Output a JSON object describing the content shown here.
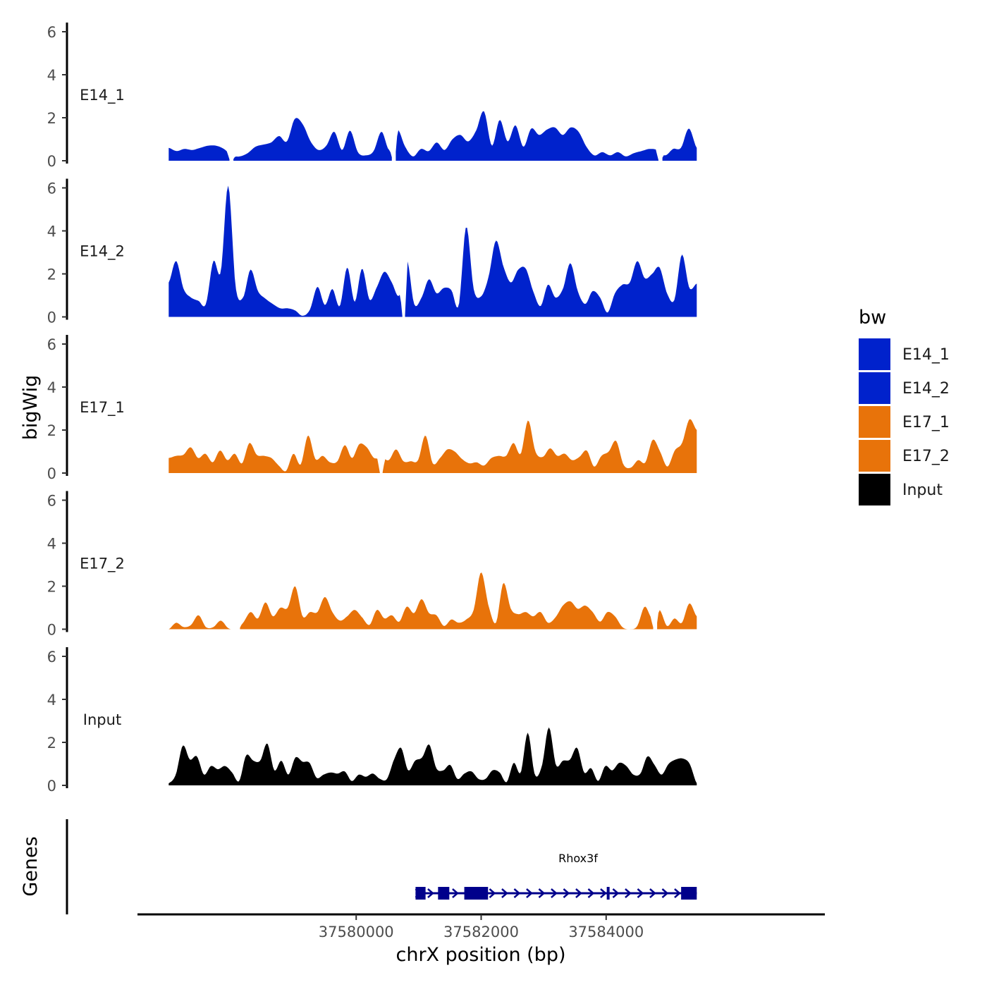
{
  "chart_data": {
    "type": "area",
    "chromosome": "chrX",
    "xlabel": "chrX position (bp)",
    "ylabel": "bigWig",
    "genes_label": "Genes",
    "xlim": [
      37576500,
      37587500
    ],
    "x_ticks": [
      37580000,
      37582000,
      37584000
    ],
    "x_tick_labels": [
      "37580000",
      "37582000",
      "37584000"
    ],
    "ylim": [
      0,
      6.3
    ],
    "y_ticks": [
      0,
      2,
      4,
      6
    ],
    "y_tick_labels": [
      "0",
      "2",
      "4",
      "6"
    ],
    "region": [
      37577000,
      37585450
    ],
    "legend": {
      "title": "bw",
      "entries": [
        {
          "label": "E14_1",
          "color": "#0022CC"
        },
        {
          "label": "E14_2",
          "color": "#0022CC"
        },
        {
          "label": "E17_1",
          "color": "#E8730A"
        },
        {
          "label": "E17_2",
          "color": "#E8730A"
        },
        {
          "label": "Input",
          "color": "#000000"
        }
      ]
    },
    "series": [
      {
        "name": "E14_1",
        "label": "E14_1",
        "color": "#0022CC",
        "profile": [
          0.6,
          0.45,
          0.55,
          0.5,
          0.6,
          0.7,
          0.7,
          0.55,
          0.25,
          0.2,
          0.35,
          0.65,
          0.75,
          0.85,
          1.15,
          0.9,
          1.95,
          1.7,
          0.9,
          0.5,
          0.7,
          1.35,
          0.5,
          1.4,
          0.4,
          0.25,
          0.45,
          1.35,
          0.5,
          1.45,
          0.65,
          0.2,
          0.55,
          0.45,
          0.85,
          0.5,
          1.0,
          1.2,
          0.9,
          1.4,
          2.3,
          0.7,
          1.9,
          0.9,
          1.65,
          0.65,
          1.5,
          1.2,
          1.45,
          1.55,
          1.2,
          1.55,
          1.35,
          0.65,
          0.25,
          0.4,
          0.25,
          0.4,
          0.2,
          0.35,
          0.45,
          0.55,
          0.5,
          0.25,
          0.55,
          0.6,
          1.5,
          0.6
        ],
        "gaps": [
          [
            37577980,
            37578020
          ],
          [
            37580580,
            37580620
          ],
          [
            37584840,
            37584880
          ]
        ]
      },
      {
        "name": "E14_2",
        "label": "E14_2",
        "color": "#0022CC",
        "profile": [
          1.6,
          2.6,
          1.3,
          0.9,
          0.75,
          0.6,
          2.6,
          2.1,
          6.1,
          1.4,
          0.9,
          2.2,
          1.2,
          0.85,
          0.6,
          0.4,
          0.4,
          0.3,
          0.05,
          0.35,
          1.4,
          0.55,
          1.3,
          0.5,
          2.3,
          0.7,
          2.25,
          0.8,
          1.4,
          2.1,
          1.6,
          1.0,
          2.7,
          0.6,
          0.9,
          1.75,
          1.1,
          1.35,
          1.25,
          0.55,
          4.2,
          1.3,
          0.95,
          1.85,
          3.55,
          2.35,
          1.6,
          2.2,
          2.25,
          1.2,
          0.5,
          1.5,
          0.9,
          1.3,
          2.5,
          1.2,
          0.6,
          1.2,
          0.9,
          0.2,
          1.1,
          1.5,
          1.6,
          2.6,
          1.8,
          2.0,
          2.3,
          1.1,
          0.8,
          2.9,
          1.35,
          1.55
        ],
        "gaps": [
          [
            37580740,
            37580780
          ]
        ]
      },
      {
        "name": "E17_1",
        "label": "E17_1",
        "color": "#E8730A",
        "profile": [
          0.7,
          0.8,
          0.85,
          1.2,
          0.7,
          0.9,
          0.5,
          1.05,
          0.6,
          0.9,
          0.45,
          1.4,
          0.85,
          0.8,
          0.7,
          0.35,
          0.1,
          0.9,
          0.4,
          1.75,
          0.65,
          0.8,
          0.5,
          0.55,
          1.3,
          0.7,
          1.35,
          1.2,
          0.7,
          0.75,
          0.6,
          1.1,
          0.55,
          0.55,
          0.6,
          1.75,
          0.45,
          0.7,
          1.1,
          1.0,
          0.65,
          0.45,
          0.5,
          0.35,
          0.7,
          0.8,
          0.8,
          1.4,
          0.9,
          2.45,
          1.0,
          0.75,
          1.15,
          0.8,
          0.9,
          0.6,
          0.75,
          1.05,
          0.3,
          0.8,
          1.0,
          1.5,
          0.4,
          0.25,
          0.6,
          0.5,
          1.55,
          1.0,
          0.3,
          1.05,
          1.4,
          2.5,
          2.0
        ],
        "gaps": [
          [
            37580380,
            37580420
          ]
        ]
      },
      {
        "name": "E17_2",
        "label": "E17_2",
        "color": "#E8730A",
        "profile": [
          0.0,
          0.3,
          0.1,
          0.2,
          0.65,
          0.1,
          0.1,
          0.4,
          0.05,
          0.0,
          0.3,
          0.8,
          0.5,
          1.25,
          0.6,
          1.0,
          1.0,
          2.0,
          0.6,
          0.8,
          0.8,
          1.5,
          0.8,
          0.4,
          0.6,
          0.9,
          0.55,
          0.2,
          0.9,
          0.5,
          0.65,
          0.35,
          1.05,
          0.75,
          1.4,
          0.75,
          0.65,
          0.15,
          0.45,
          0.3,
          0.45,
          0.9,
          2.65,
          1.1,
          0.3,
          2.15,
          0.95,
          0.7,
          0.8,
          0.6,
          0.8,
          0.3,
          0.55,
          1.1,
          1.3,
          0.95,
          1.1,
          0.8,
          0.35,
          0.8,
          0.6,
          0.1,
          0.0,
          0.15,
          1.05,
          0.5,
          0.9,
          0.15,
          0.5,
          0.3,
          1.2,
          0.6
        ],
        "gaps": [
          [
            37578080,
            37578120
          ],
          [
            37584760,
            37584800
          ]
        ]
      },
      {
        "name": "Input",
        "label": "Input",
        "color": "#000000",
        "profile": [
          0.1,
          0.5,
          1.85,
          1.2,
          1.35,
          0.5,
          0.9,
          0.75,
          0.9,
          0.6,
          0.2,
          1.4,
          1.15,
          1.15,
          1.95,
          0.7,
          1.15,
          0.5,
          1.3,
          1.1,
          1.05,
          0.35,
          0.5,
          0.6,
          0.55,
          0.65,
          0.2,
          0.5,
          0.4,
          0.55,
          0.3,
          0.3,
          1.2,
          1.75,
          0.7,
          1.15,
          1.3,
          1.9,
          0.8,
          0.7,
          0.95,
          0.3,
          0.55,
          0.65,
          0.3,
          0.3,
          0.7,
          0.6,
          0.15,
          1.05,
          0.6,
          2.45,
          0.5,
          0.9,
          2.7,
          0.95,
          1.15,
          1.2,
          1.75,
          0.6,
          0.8,
          0.2,
          0.9,
          0.7,
          1.05,
          0.9,
          0.5,
          0.55,
          1.35,
          0.95,
          0.5,
          1.0,
          1.2,
          1.25,
          1.0,
          0.1
        ],
        "gaps": []
      }
    ],
    "gene": {
      "name": "Rhox3f",
      "strand": "+",
      "start": 37580950,
      "end": 37585450,
      "exons": [
        [
          37580950,
          37581110
        ],
        [
          37581310,
          37581490
        ],
        [
          37581730,
          37582110
        ],
        [
          37584010,
          37584040
        ],
        [
          37585200,
          37585450
        ]
      ],
      "color": "#00008B"
    }
  }
}
